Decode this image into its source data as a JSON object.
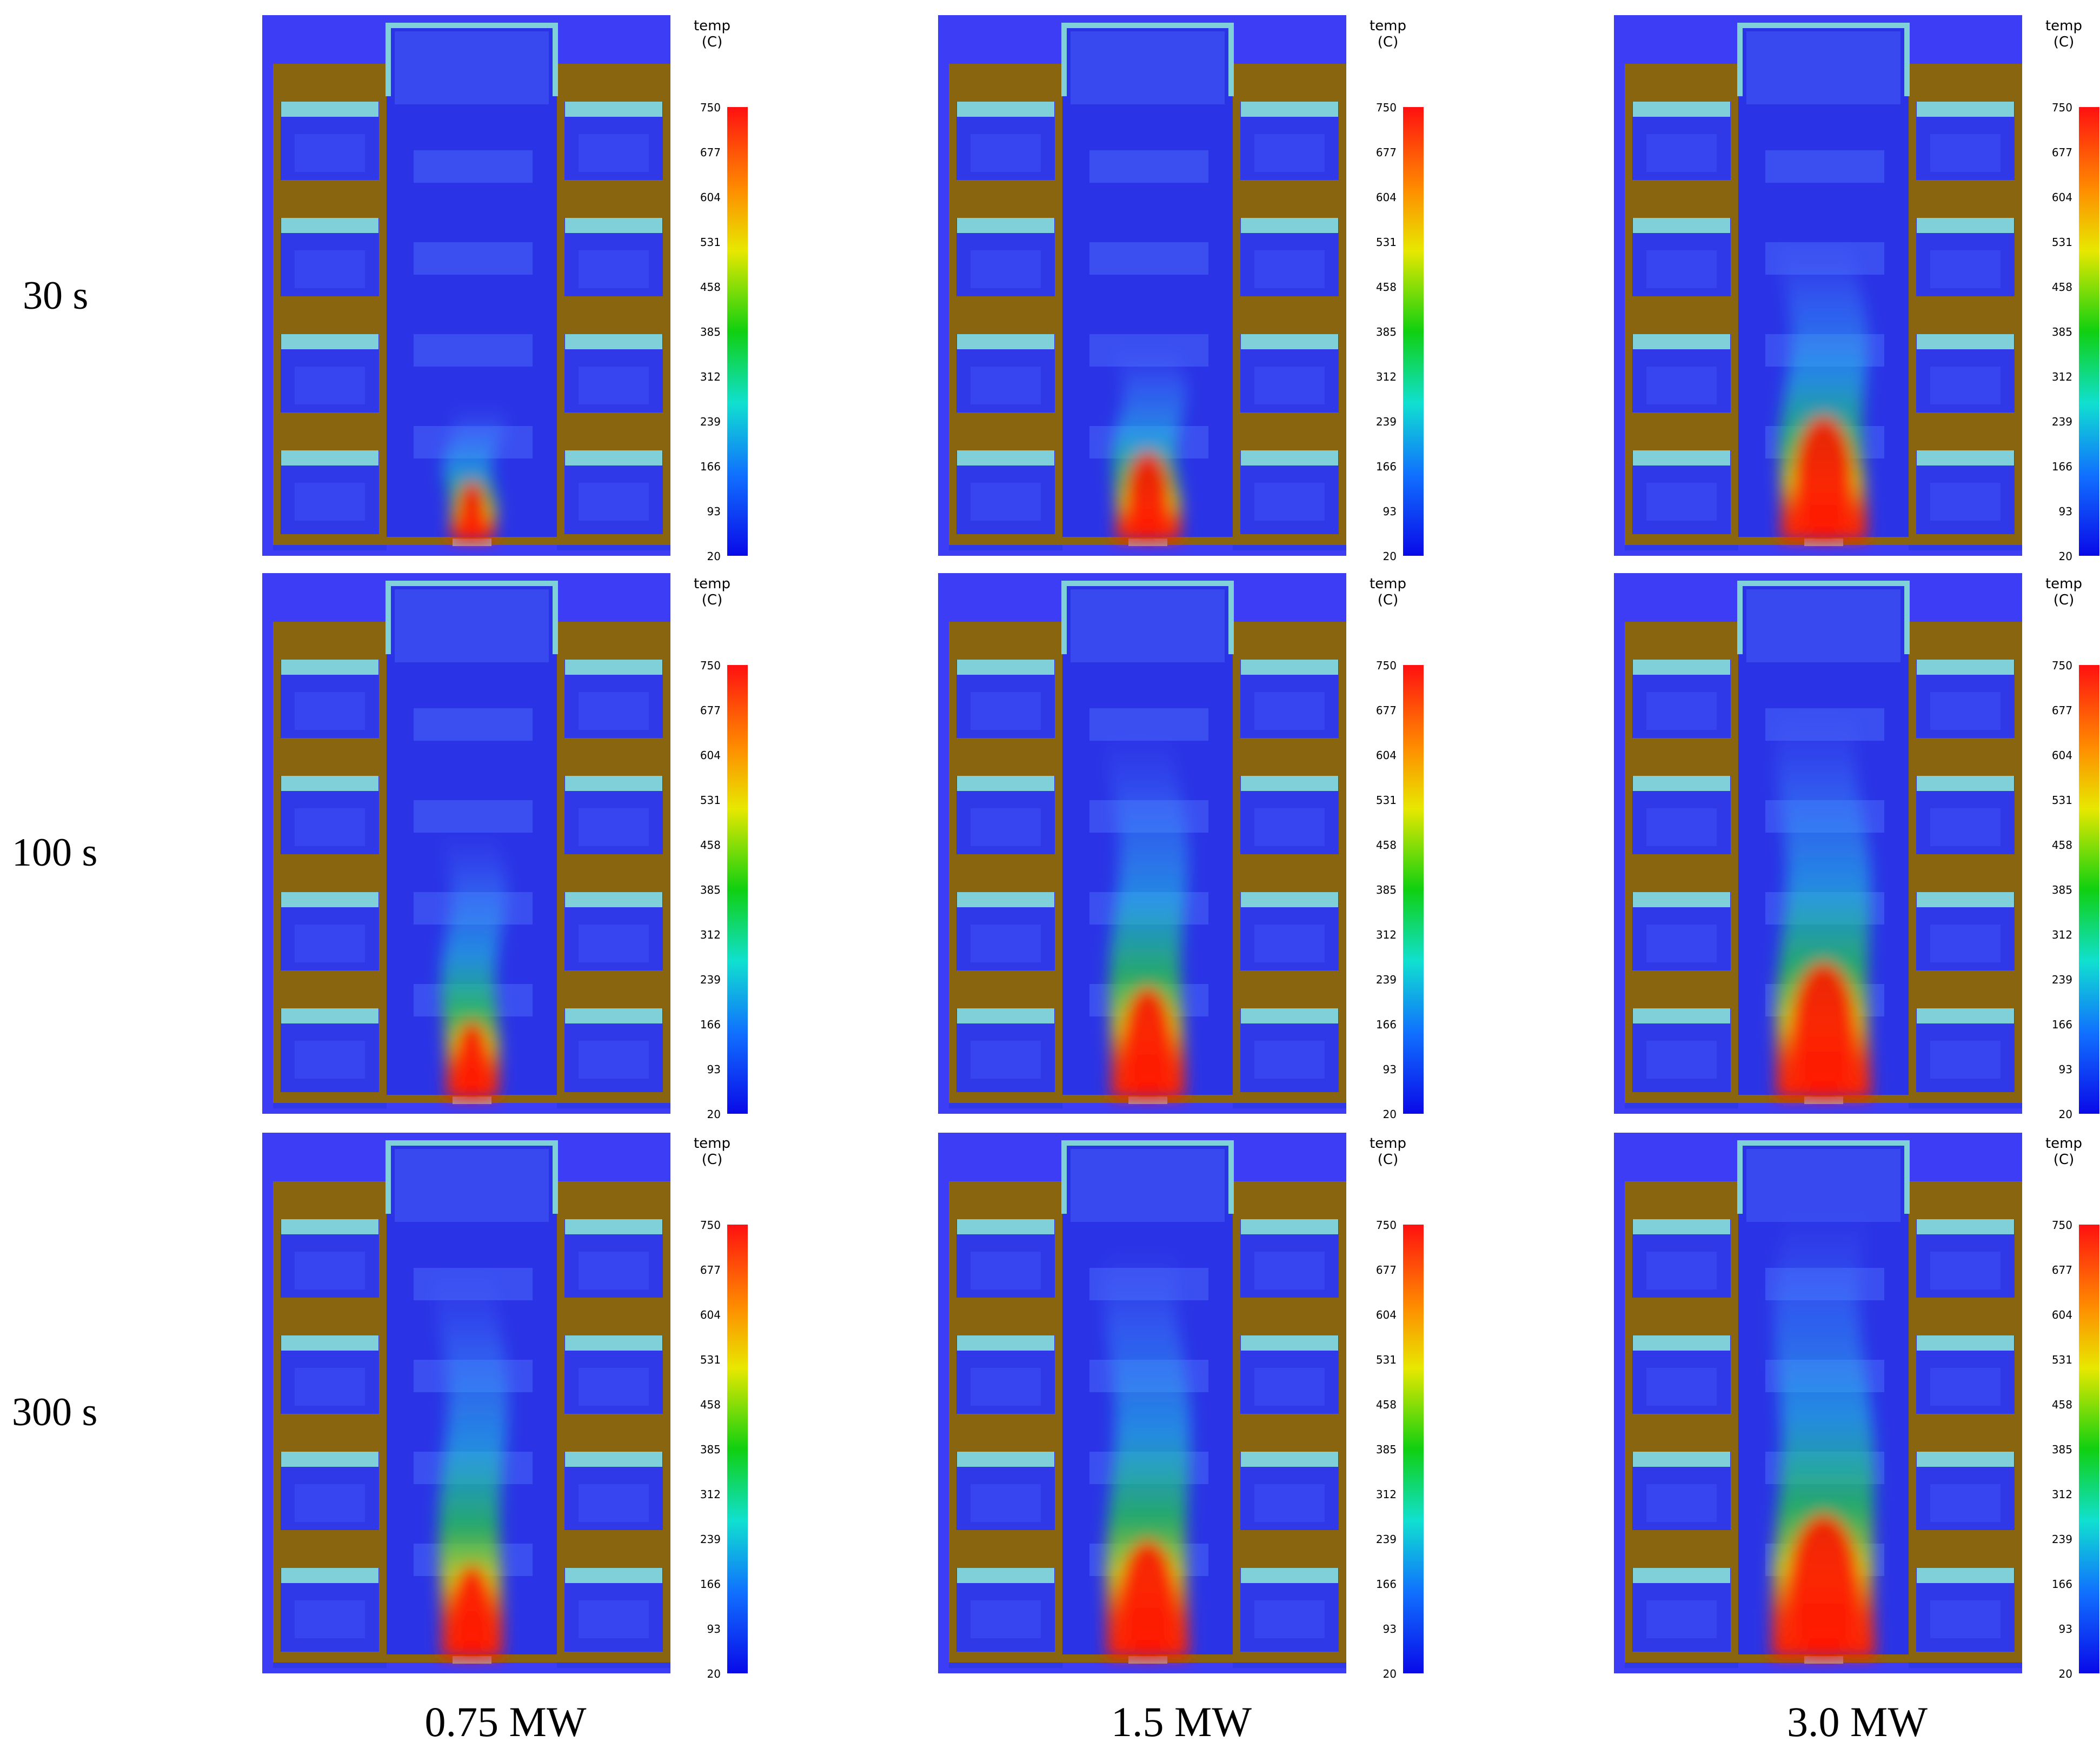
{
  "colorbar": {
    "title_line1": "temp",
    "title_line2": "(C)",
    "ticks": [
      "750",
      "677",
      "604",
      "531",
      "458",
      "385",
      "312",
      "239",
      "166",
      "93",
      "20"
    ]
  },
  "rows": [
    {
      "label": "30 s"
    },
    {
      "label": "100 s"
    },
    {
      "label": "300 s"
    }
  ],
  "columns": [
    {
      "label": "0.75 MW"
    },
    {
      "label": "1.5 MW"
    },
    {
      "label": "3.0 MW"
    }
  ],
  "plume_levels": [
    [
      0.28,
      0.4,
      0.62
    ],
    [
      0.55,
      0.75,
      0.8
    ],
    [
      0.8,
      0.85,
      0.92
    ]
  ],
  "colors": {
    "background": "#3d3df5",
    "wall_brown": "#8a6510",
    "slab_cyan": "#7fd0d8",
    "interior_blue": "#2f39e8"
  }
}
